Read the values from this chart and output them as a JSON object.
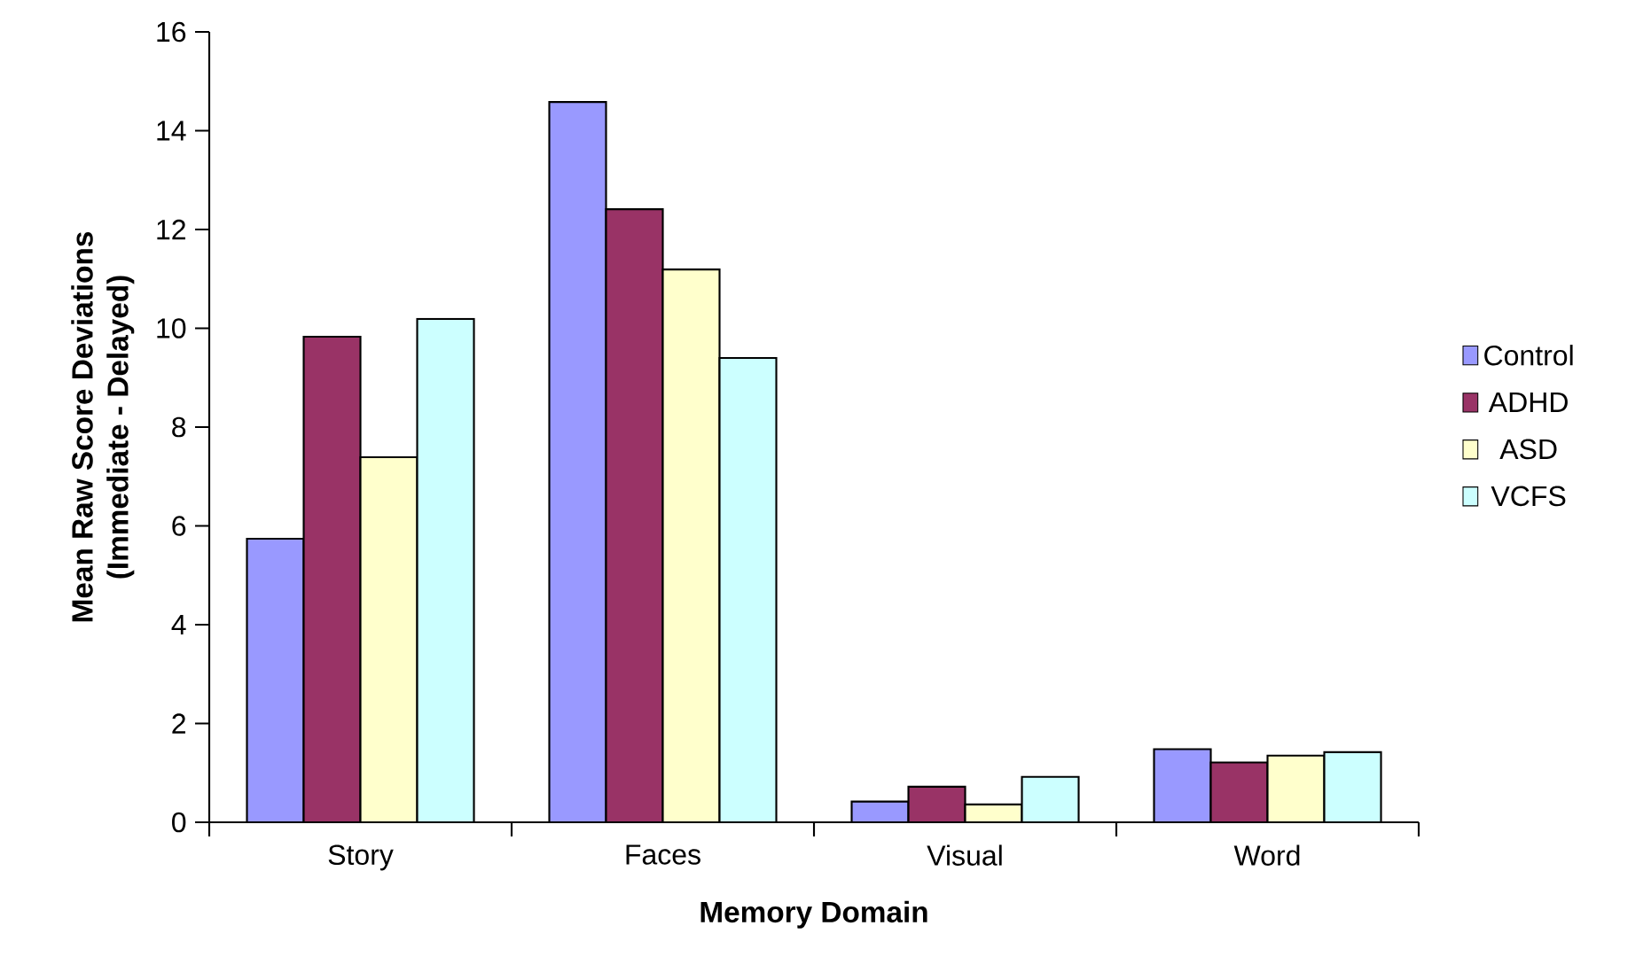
{
  "chart_data": {
    "type": "bar",
    "xlabel": "Memory Domain",
    "ylabel": "Mean Raw Score Deviations\n(Immediate - Delayed)",
    "categories": [
      "Story",
      "Faces",
      "Visual",
      "Word"
    ],
    "series": [
      {
        "name": "Control",
        "color": "#9999ff",
        "values": [
          5.74,
          14.58,
          0.42,
          1.48
        ]
      },
      {
        "name": "ADHD",
        "color": "#993366",
        "values": [
          9.83,
          12.41,
          0.72,
          1.21
        ]
      },
      {
        "name": "ASD",
        "color": "#ffffcc",
        "values": [
          7.39,
          11.19,
          0.36,
          1.35
        ]
      },
      {
        "name": "VCFS",
        "color": "#ccffff",
        "values": [
          10.19,
          9.4,
          0.92,
          1.42
        ]
      }
    ],
    "ylim": [
      0,
      16
    ],
    "yticks": [
      0,
      2,
      4,
      6,
      8,
      10,
      12,
      14,
      16
    ],
    "grid": false,
    "legend": "right"
  }
}
